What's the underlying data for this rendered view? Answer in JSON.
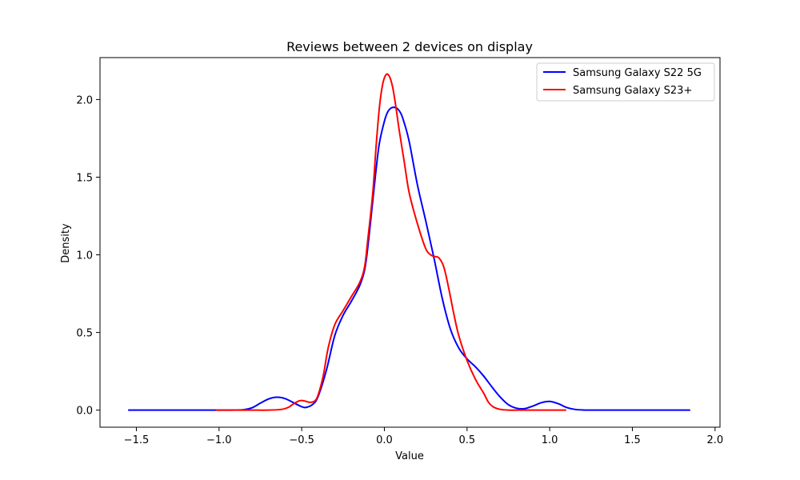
{
  "chart_data": {
    "type": "line",
    "title": "Reviews between 2 devices on display",
    "xlabel": "Value",
    "ylabel": "Density",
    "xlim": [
      -1.72,
      2.03
    ],
    "ylim": [
      -0.11,
      2.27
    ],
    "xticks": [
      -1.5,
      -1.0,
      -0.5,
      0.0,
      0.5,
      1.0,
      1.5,
      2.0
    ],
    "xtick_labels": [
      "−1.5",
      "−1.0",
      "−0.5",
      "0.0",
      "0.5",
      "1.0",
      "1.5",
      "2.0"
    ],
    "yticks": [
      0.0,
      0.5,
      1.0,
      1.5,
      2.0
    ],
    "ytick_labels": [
      "0.0",
      "0.5",
      "1.0",
      "1.5",
      "2.0"
    ],
    "grid": false,
    "legend_position": "top-right",
    "series": [
      {
        "name": "Samsung Galaxy S22 5G",
        "color": "#0000ff",
        "x": [
          -1.55,
          -1.3,
          -1.1,
          -0.95,
          -0.85,
          -0.8,
          -0.75,
          -0.7,
          -0.65,
          -0.6,
          -0.55,
          -0.5,
          -0.47,
          -0.43,
          -0.4,
          -0.35,
          -0.3,
          -0.25,
          -0.2,
          -0.15,
          -0.12,
          -0.1,
          -0.07,
          -0.05,
          -0.03,
          0.0,
          0.02,
          0.04,
          0.06,
          0.08,
          0.1,
          0.12,
          0.15,
          0.2,
          0.25,
          0.3,
          0.35,
          0.4,
          0.45,
          0.5,
          0.55,
          0.6,
          0.65,
          0.7,
          0.75,
          0.8,
          0.85,
          0.9,
          0.95,
          1.0,
          1.05,
          1.1,
          1.15,
          1.2,
          1.3,
          1.5,
          1.85
        ],
        "y": [
          0.0,
          0.0,
          0.0,
          0.0,
          0.003,
          0.015,
          0.045,
          0.072,
          0.083,
          0.074,
          0.048,
          0.022,
          0.018,
          0.04,
          0.09,
          0.26,
          0.48,
          0.61,
          0.7,
          0.8,
          0.9,
          1.05,
          1.35,
          1.55,
          1.72,
          1.86,
          1.92,
          1.945,
          1.95,
          1.94,
          1.91,
          1.85,
          1.73,
          1.45,
          1.22,
          0.98,
          0.72,
          0.52,
          0.4,
          0.33,
          0.28,
          0.22,
          0.15,
          0.085,
          0.035,
          0.012,
          0.01,
          0.027,
          0.048,
          0.056,
          0.042,
          0.018,
          0.005,
          0.001,
          0.0,
          0.0,
          0.0
        ]
      },
      {
        "name": "Samsung Galaxy S23+",
        "color": "#ff0000",
        "x": [
          -1.02,
          -0.9,
          -0.8,
          -0.7,
          -0.62,
          -0.58,
          -0.55,
          -0.52,
          -0.5,
          -0.48,
          -0.45,
          -0.42,
          -0.4,
          -0.37,
          -0.34,
          -0.3,
          -0.25,
          -0.2,
          -0.15,
          -0.12,
          -0.1,
          -0.07,
          -0.05,
          -0.03,
          -0.01,
          0.01,
          0.03,
          0.05,
          0.07,
          0.09,
          0.12,
          0.15,
          0.2,
          0.25,
          0.28,
          0.3,
          0.33,
          0.36,
          0.39,
          0.42,
          0.45,
          0.5,
          0.55,
          0.6,
          0.63,
          0.66,
          0.7,
          0.75,
          0.8,
          0.9,
          1.0,
          1.1
        ],
        "y": [
          0.0,
          0.0,
          0.0,
          0.0,
          0.005,
          0.018,
          0.04,
          0.058,
          0.062,
          0.058,
          0.05,
          0.06,
          0.1,
          0.22,
          0.4,
          0.55,
          0.64,
          0.73,
          0.82,
          0.92,
          1.1,
          1.4,
          1.7,
          1.95,
          2.1,
          2.16,
          2.15,
          2.08,
          1.95,
          1.8,
          1.6,
          1.4,
          1.2,
          1.04,
          1.0,
          0.99,
          0.98,
          0.92,
          0.78,
          0.62,
          0.48,
          0.32,
          0.2,
          0.11,
          0.05,
          0.02,
          0.005,
          0.0,
          0.0,
          0.0,
          0.0,
          0.0
        ]
      }
    ]
  }
}
